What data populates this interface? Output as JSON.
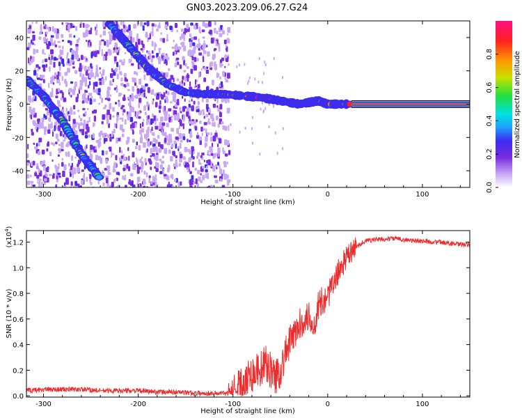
{
  "figure_title": "GN03.2023.209.06.27.G24",
  "chart_data": [
    {
      "type": "heatmap",
      "title": "",
      "xlabel": "Height of straight line (km)",
      "ylabel": "Frequency (Hz)",
      "xlim": [
        -318,
        150
      ],
      "ylim": [
        -50,
        50
      ],
      "xticks": [
        "-300",
        "-200",
        "-100",
        "0",
        "100"
      ],
      "yticks": [
        "-40",
        "-20",
        "0",
        "20",
        "40"
      ],
      "colorbar": {
        "label": "Normalized spectral amplitude",
        "range": [
          0.0,
          1.0
        ],
        "ticks": [
          "0.0",
          "0.2",
          "0.4",
          "0.6",
          "0.8"
        ],
        "colormap": [
          "#ffffff",
          "#c8a8f5",
          "#7a2ce0",
          "#3b2cf0",
          "#1fa0ff",
          "#00e0e0",
          "#20e040",
          "#c8e000",
          "#ff9900",
          "#ff2020",
          "#ff1080"
        ]
      },
      "ridges": [
        {
          "x": [
            -318,
            -300,
            -280,
            -260,
            -240
          ],
          "y": [
            15,
            5,
            -10,
            -30,
            -45
          ]
        },
        {
          "x": [
            -230,
            -210,
            -190,
            -170,
            -150,
            -130,
            -110
          ],
          "y": [
            48,
            35,
            22,
            12,
            7,
            6,
            6
          ]
        },
        {
          "x": [
            -110,
            -90,
            -70,
            -50,
            -40,
            -30,
            -20,
            -10,
            0,
            25
          ],
          "y": [
            6,
            5,
            4,
            2,
            1,
            0,
            1,
            2,
            0,
            0
          ]
        },
        {
          "x": [
            25,
            150
          ],
          "y": [
            0,
            0
          ]
        }
      ]
    },
    {
      "type": "line",
      "title": "",
      "xlabel": "Height of straight line (km)",
      "ylabel": "SNR (10 * v/v)",
      "y_multiplier": "(x10",
      "y_multiplier_exp": "4",
      "y_multiplier_close": ")",
      "xlim": [
        -318,
        150
      ],
      "ylim": [
        -0.01,
        1.29
      ],
      "xticks": [
        "-300",
        "-200",
        "-100",
        "0",
        "100"
      ],
      "yticks": [
        "0.0",
        "0.2",
        "0.4",
        "0.6",
        "0.8",
        "1.0",
        "1.2"
      ],
      "color": "#ee2c2c",
      "series": [
        {
          "x": [
            -318,
            -300,
            -280,
            -260,
            -240,
            -220,
            -200,
            -180,
            -160,
            -140,
            -120,
            -105,
            -95,
            -90,
            -85,
            -80,
            -75,
            -70,
            -65,
            -60,
            -55,
            -50,
            -45,
            -40,
            -35,
            -30,
            -25,
            -20,
            -15,
            -10,
            -5,
            0,
            5,
            10,
            15,
            20,
            25,
            30,
            35,
            40,
            50,
            60,
            70,
            80,
            90,
            100,
            110,
            120,
            130,
            140,
            150
          ],
          "y": [
            0.04,
            0.05,
            0.05,
            0.05,
            0.04,
            0.04,
            0.04,
            0.03,
            0.03,
            0.02,
            0.02,
            0.02,
            0.05,
            0.1,
            0.15,
            0.17,
            0.2,
            0.22,
            0.25,
            0.2,
            0.15,
            0.2,
            0.32,
            0.42,
            0.48,
            0.55,
            0.6,
            0.62,
            0.55,
            0.7,
            0.75,
            0.78,
            0.85,
            0.95,
            1.02,
            1.08,
            1.12,
            1.16,
            1.19,
            1.21,
            1.22,
            1.22,
            1.23,
            1.22,
            1.21,
            1.21,
            1.2,
            1.2,
            1.19,
            1.18,
            1.18
          ]
        }
      ]
    }
  ]
}
